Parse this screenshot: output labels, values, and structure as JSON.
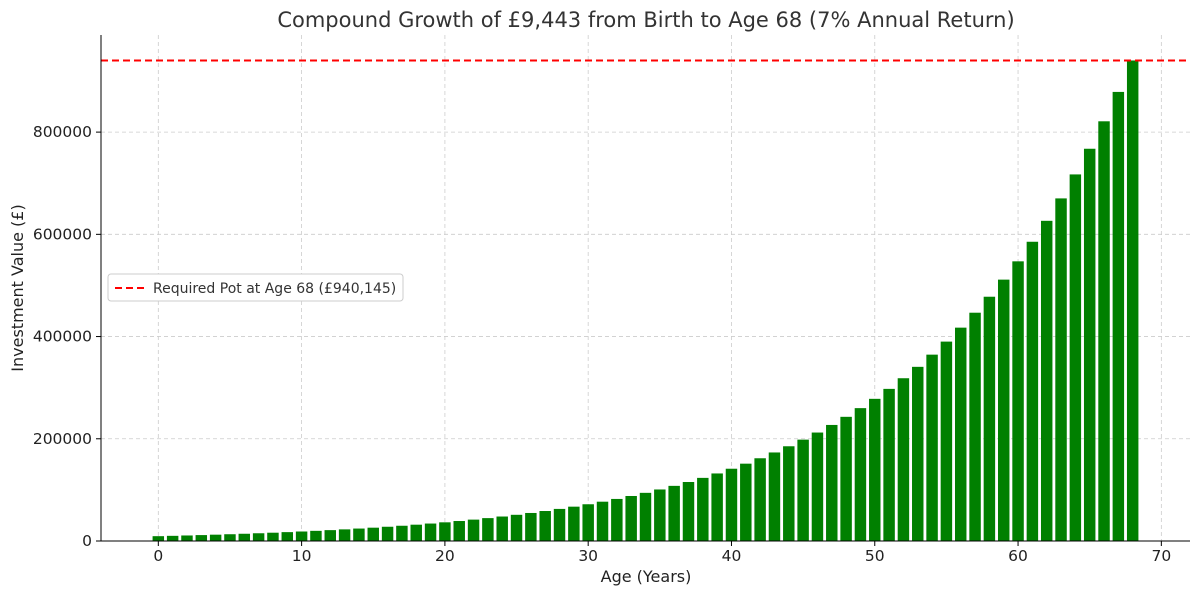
{
  "chart_data": {
    "type": "bar",
    "title": "Compound Growth of £9,443 from Birth to Age 68 (7% Annual Return)",
    "xlabel": "Age (Years)",
    "ylabel": "Investment Value (£)",
    "principal": 9443,
    "annual_rate": 0.07,
    "x": [
      0,
      1,
      2,
      3,
      4,
      5,
      6,
      7,
      8,
      9,
      10,
      11,
      12,
      13,
      14,
      15,
      16,
      17,
      18,
      19,
      20,
      21,
      22,
      23,
      24,
      25,
      26,
      27,
      28,
      29,
      30,
      31,
      32,
      33,
      34,
      35,
      36,
      37,
      38,
      39,
      40,
      41,
      42,
      43,
      44,
      45,
      46,
      47,
      48,
      49,
      50,
      51,
      52,
      53,
      54,
      55,
      56,
      57,
      58,
      59,
      60,
      61,
      62,
      63,
      64,
      65,
      66,
      67,
      68
    ],
    "values": [
      9443,
      10104,
      10811,
      11568,
      12378,
      13244,
      14171,
      15163,
      16225,
      17360,
      18576,
      19876,
      21267,
      22756,
      24349,
      26053,
      27877,
      29828,
      31916,
      34150,
      36541,
      39099,
      41835,
      44764,
      47897,
      51250,
      54837,
      58676,
      62783,
      67178,
      71881,
      76912,
      82296,
      88057,
      94221,
      100816,
      107873,
      115424,
      123504,
      132149,
      141399,
      151297,
      161888,
      173220,
      185346,
      198320,
      212202,
      227056,
      242950,
      259957,
      278154,
      297625,
      318458,
      340750,
      364603,
      390125,
      417434,
      446654,
      477920,
      511374,
      547170,
      585472,
      626455,
      670307,
      717228,
      767434,
      821154,
      878635,
      940139
    ],
    "bar_color": "#008000",
    "xlim": [
      -4,
      72
    ],
    "ylim": [
      0,
      990000
    ],
    "xticks": [
      0,
      10,
      20,
      30,
      40,
      50,
      60,
      70
    ],
    "yticks": [
      0,
      200000,
      400000,
      600000,
      800000
    ],
    "reference_line": {
      "value": 940145,
      "label": "Required Pot at Age 68 (£940,145)",
      "color": "#ff0000",
      "style": "dashed"
    },
    "grid": true,
    "legend_position": "center-left"
  }
}
